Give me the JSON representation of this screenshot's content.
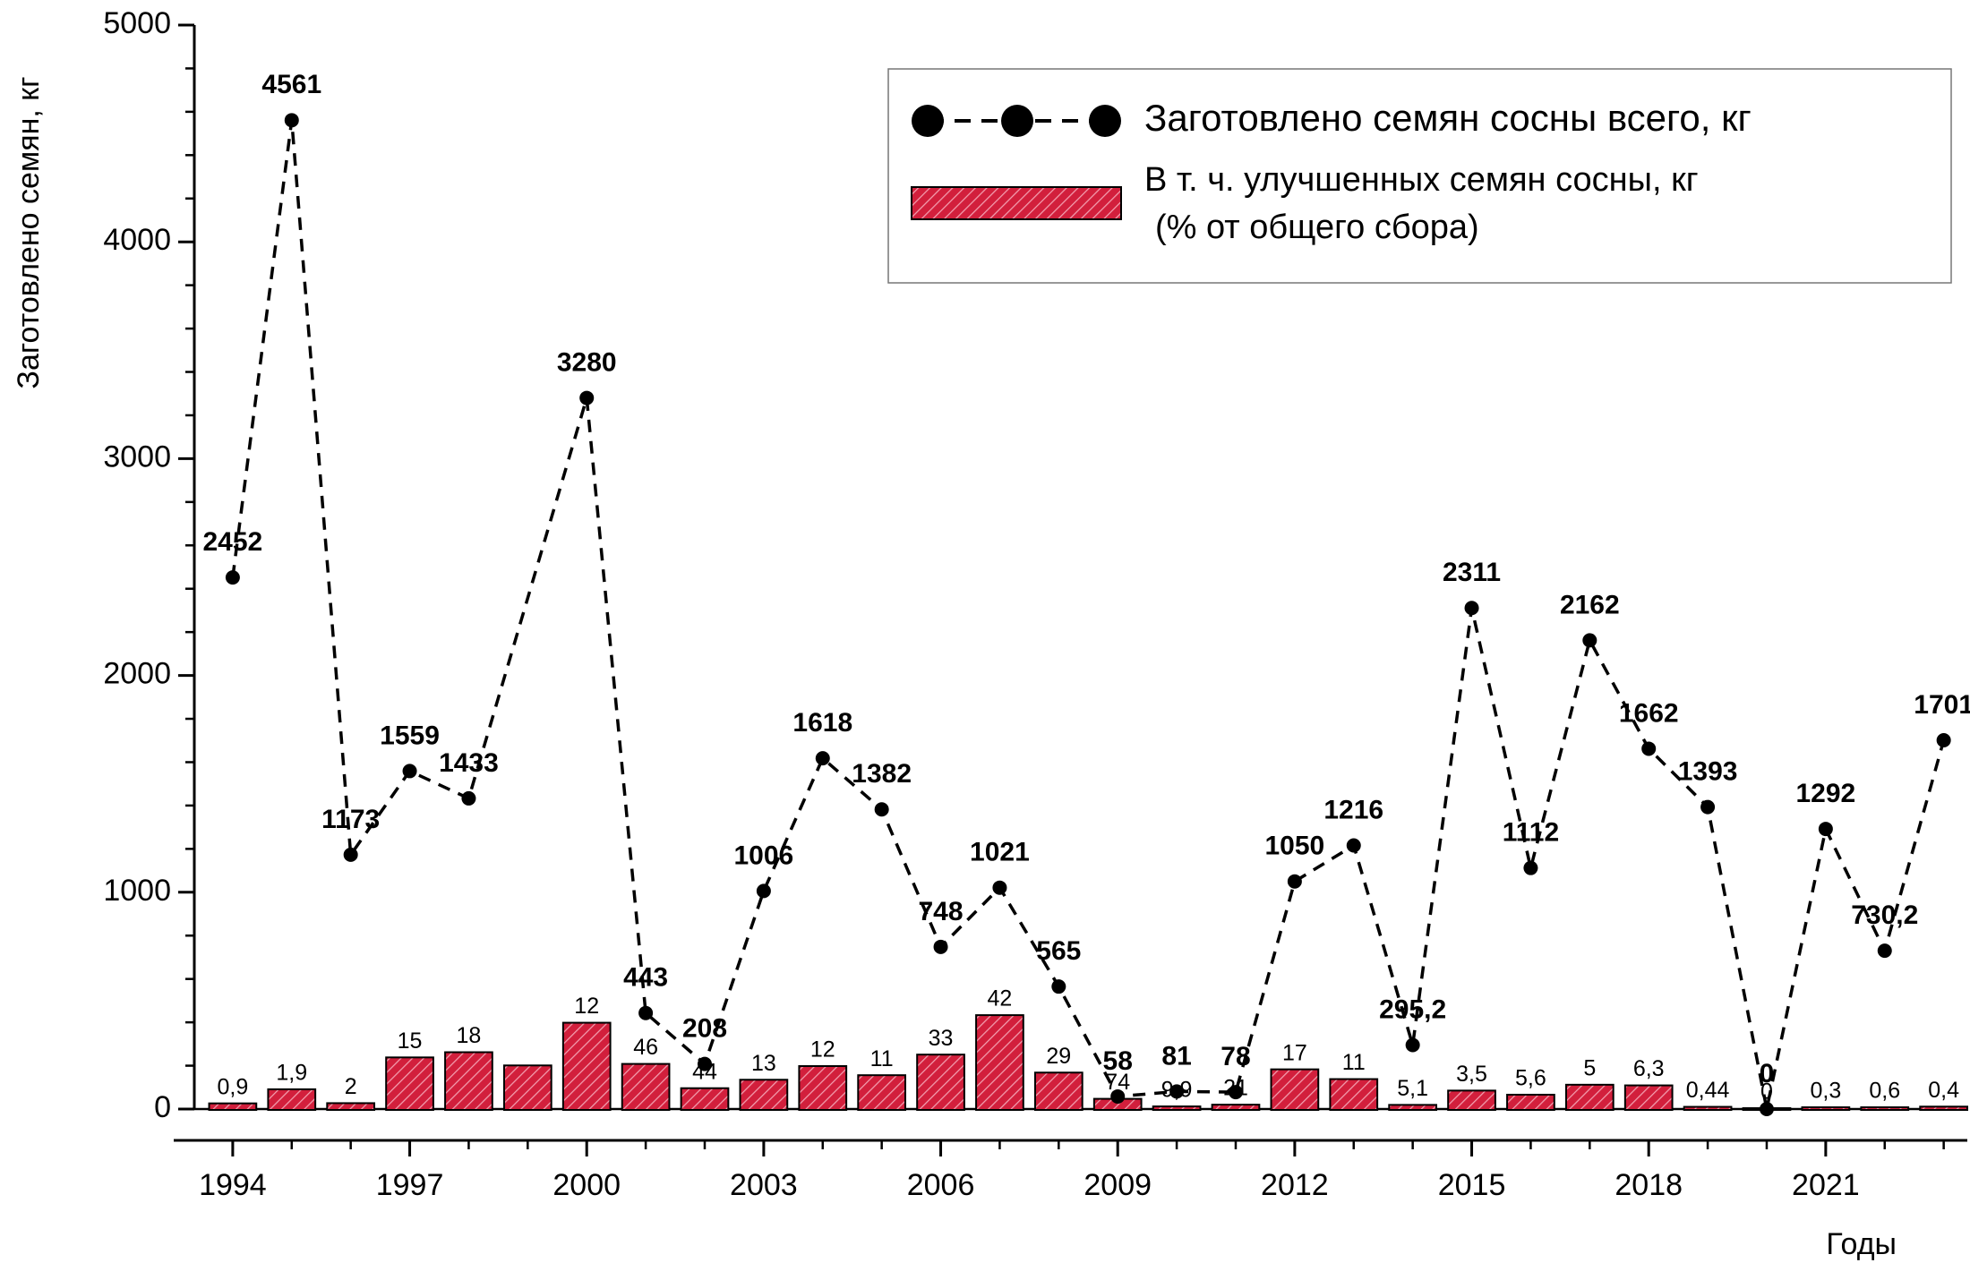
{
  "chart_data": {
    "type": "bar_line",
    "y_label": "Заготовлено семян, кг",
    "x_label": "Годы",
    "xlim": [
      1993,
      2023.4
    ],
    "xticks": [
      1994,
      1997,
      2000,
      2003,
      2006,
      2009,
      2012,
      2015,
      2018,
      2021
    ],
    "ylim": [
      0,
      5000
    ],
    "yticks": [
      0,
      1000,
      2000,
      3000,
      4000,
      5000
    ],
    "yminorticks": [
      200,
      400,
      600,
      800,
      1200,
      1400,
      1600,
      1800,
      2200,
      2400,
      2600,
      2800,
      3200,
      3400,
      3600,
      3800,
      4200,
      4400,
      4600,
      4800
    ],
    "legend": "upper right",
    "bars": {
      "name": "В т. ч. улучшенных семян сосны, кг",
      "name_note": "(%  от общего сбора)",
      "color": "#d21f3c",
      "x": [
        1994,
        1995,
        1996,
        1997,
        1998,
        1999,
        2000,
        2001,
        2002,
        2003,
        2004,
        2005,
        2006,
        2007,
        2008,
        2009,
        2010,
        2011,
        2012,
        2013,
        2014,
        2015,
        2016,
        2017,
        2018,
        2019,
        2020,
        2021,
        2022,
        2023
      ],
      "values": [
        22,
        87,
        23,
        234,
        258,
        197,
        394,
        204,
        92,
        131,
        194,
        152,
        247,
        429,
        164,
        43,
        8,
        16,
        179,
        134,
        15,
        81,
        62,
        108,
        105,
        6,
        0,
        4,
        4,
        7
      ],
      "labels": [
        "0,9",
        "1,9",
        "2",
        "15",
        "18",
        null,
        "12",
        "46",
        "44",
        "13",
        "12",
        "11",
        "33",
        "42",
        "29",
        "74",
        "9,9",
        "21",
        "17",
        "11",
        "5,1",
        "3,5",
        "5,6",
        "5",
        "6,3",
        "0,44",
        "0",
        "0,3",
        "0,6",
        "0,4"
      ]
    },
    "line": {
      "name": "Заготовлено семян сосны всего, кг",
      "color": "#000000",
      "x": [
        1994,
        1995,
        1996,
        1997,
        1998,
        2000,
        2001,
        2002,
        2003,
        2004,
        2005,
        2006,
        2007,
        2008,
        2009,
        2010,
        2011,
        2012,
        2013,
        2014,
        2015,
        2016,
        2017,
        2018,
        2019,
        2020,
        2021,
        2022,
        2023
      ],
      "values": [
        2452,
        4561,
        1173,
        1559,
        1433,
        3280,
        443,
        208,
        1006,
        1618,
        1382,
        748,
        1021,
        565,
        58,
        81,
        78,
        1050,
        1216,
        295.2,
        2311,
        1112,
        2162,
        1662,
        1393,
        0,
        1292,
        730.2,
        1701
      ],
      "value_labels": [
        "2452",
        "4561",
        "1173",
        "1559",
        "1433",
        "3280",
        "443",
        "208",
        "1006",
        "1618",
        "1382",
        "748",
        "1021",
        "565",
        "58",
        "81",
        "78",
        "1050",
        "1216",
        "295,2",
        "2311",
        "1112",
        "2162",
        "1662",
        "1393",
        "0",
        "1292",
        "730,2",
        "1701"
      ]
    }
  }
}
